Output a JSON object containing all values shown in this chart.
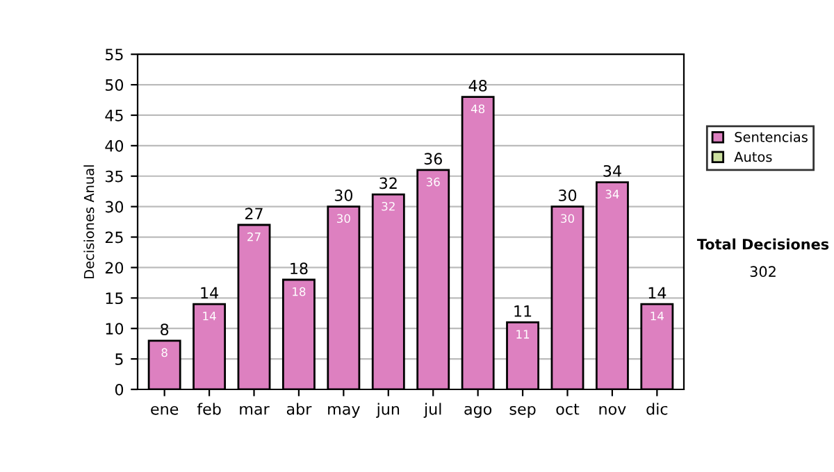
{
  "chart_data": {
    "type": "bar",
    "ylabel": "Decisiones Anual",
    "categories": [
      "ene",
      "feb",
      "mar",
      "abr",
      "may",
      "jun",
      "jul",
      "ago",
      "sep",
      "oct",
      "nov",
      "dic"
    ],
    "series": [
      {
        "name": "Sentencias",
        "color": "#dd80c0",
        "values": [
          8,
          14,
          27,
          18,
          30,
          32,
          36,
          48,
          11,
          30,
          34,
          14
        ]
      },
      {
        "name": "Autos",
        "color": "#cce0a0",
        "values": [
          null,
          null,
          null,
          null,
          null,
          null,
          null,
          null,
          null,
          null,
          null,
          null
        ]
      }
    ],
    "ylim": [
      0,
      55
    ],
    "yticks": [
      0,
      5,
      10,
      15,
      20,
      25,
      30,
      35,
      40,
      45,
      50,
      55
    ],
    "totals": [
      "8",
      "14",
      "27",
      "18",
      "30",
      "32",
      "36",
      "48",
      "11",
      "30",
      "34",
      "14"
    ],
    "grid": "y",
    "legend": "right",
    "data_labels": true,
    "annotations": [
      "Total Decisiones",
      "302"
    ]
  }
}
